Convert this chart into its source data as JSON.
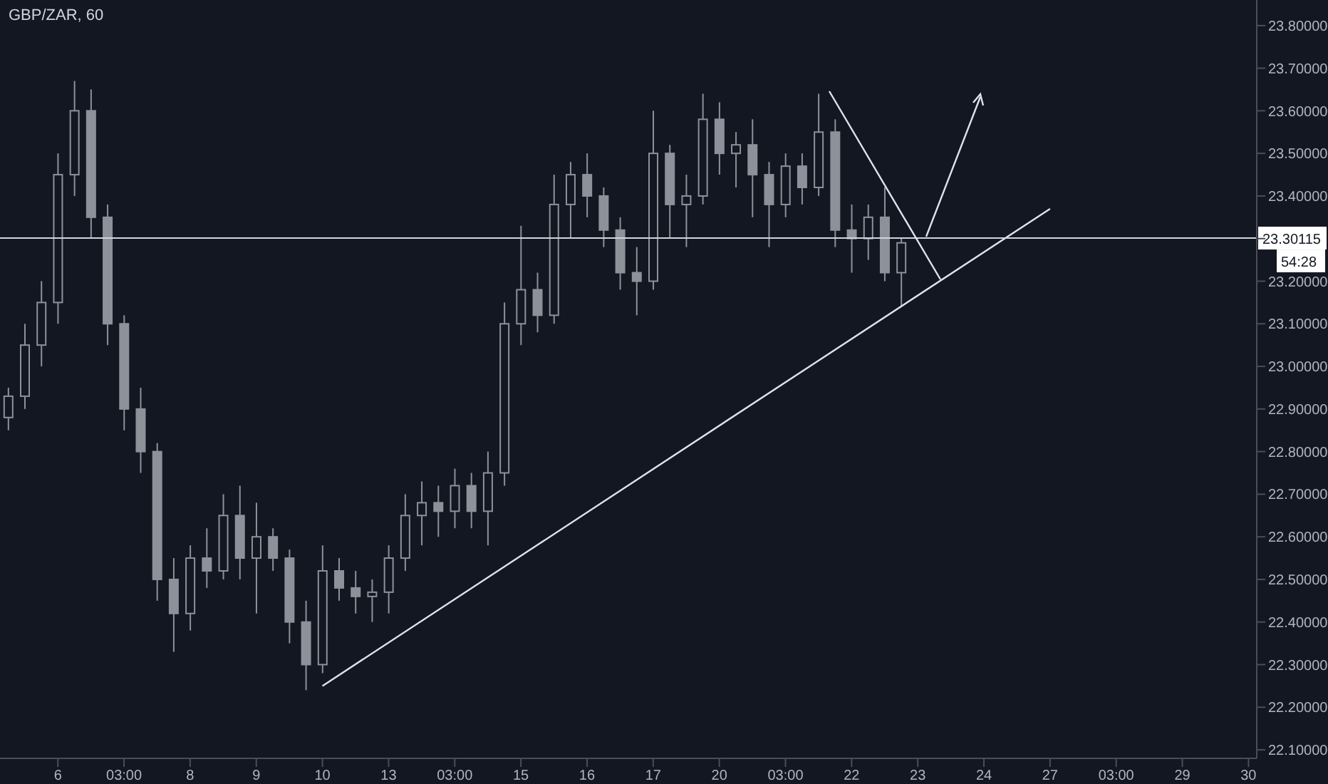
{
  "chart_data": {
    "type": "candlestick",
    "title": "GBP/ZAR, 60",
    "categories": [
      null,
      null,
      null,
      "6",
      null,
      null,
      null,
      "03:00",
      null,
      null,
      null,
      "8",
      null,
      null,
      null,
      "9",
      null,
      null,
      null,
      "10",
      null,
      null,
      null,
      "13",
      null,
      null,
      null,
      "03:00",
      null,
      null,
      null,
      "15",
      null,
      null,
      null,
      "16",
      null,
      null,
      null,
      "17",
      null,
      null,
      null,
      "20",
      null,
      null,
      null,
      "03:00",
      null,
      null,
      null,
      "22",
      null,
      null,
      null,
      "23",
      null,
      null,
      null,
      "24",
      null,
      null,
      null,
      "27",
      null,
      null,
      null,
      "03:00",
      null,
      null,
      null,
      "29",
      null,
      null,
      null,
      "30"
    ],
    "ohlc": [
      [
        22.88,
        22.95,
        22.85,
        22.93
      ],
      [
        22.93,
        23.1,
        22.9,
        23.05
      ],
      [
        23.05,
        23.2,
        23.0,
        23.15
      ],
      [
        23.15,
        23.5,
        23.1,
        23.45
      ],
      [
        23.45,
        23.67,
        23.4,
        23.6
      ],
      [
        23.6,
        23.65,
        23.3,
        23.35
      ],
      [
        23.35,
        23.38,
        23.05,
        23.1
      ],
      [
        23.1,
        23.12,
        22.85,
        22.9
      ],
      [
        22.9,
        22.95,
        22.75,
        22.8
      ],
      [
        22.8,
        22.82,
        22.45,
        22.5
      ],
      [
        22.5,
        22.55,
        22.33,
        22.42
      ],
      [
        22.42,
        22.58,
        22.38,
        22.55
      ],
      [
        22.55,
        22.62,
        22.48,
        22.52
      ],
      [
        22.52,
        22.7,
        22.5,
        22.65
      ],
      [
        22.65,
        22.72,
        22.5,
        22.55
      ],
      [
        22.55,
        22.68,
        22.42,
        22.6
      ],
      [
        22.6,
        22.62,
        22.52,
        22.55
      ],
      [
        22.55,
        22.57,
        22.35,
        22.4
      ],
      [
        22.4,
        22.45,
        22.24,
        22.3
      ],
      [
        22.3,
        22.58,
        22.28,
        22.52
      ],
      [
        22.52,
        22.55,
        22.45,
        22.48
      ],
      [
        22.48,
        22.52,
        22.42,
        22.46
      ],
      [
        22.46,
        22.5,
        22.4,
        22.47
      ],
      [
        22.47,
        22.58,
        22.42,
        22.55
      ],
      [
        22.55,
        22.7,
        22.52,
        22.65
      ],
      [
        22.65,
        22.73,
        22.58,
        22.68
      ],
      [
        22.68,
        22.72,
        22.6,
        22.66
      ],
      [
        22.66,
        22.76,
        22.62,
        22.72
      ],
      [
        22.72,
        22.75,
        22.62,
        22.66
      ],
      [
        22.66,
        22.8,
        22.58,
        22.75
      ],
      [
        22.75,
        23.15,
        22.72,
        23.1
      ],
      [
        23.1,
        23.33,
        23.05,
        23.18
      ],
      [
        23.18,
        23.22,
        23.08,
        23.12
      ],
      [
        23.12,
        23.45,
        23.1,
        23.38
      ],
      [
        23.38,
        23.48,
        23.3,
        23.45
      ],
      [
        23.45,
        23.5,
        23.35,
        23.4
      ],
      [
        23.4,
        23.42,
        23.28,
        23.32
      ],
      [
        23.32,
        23.35,
        23.18,
        23.22
      ],
      [
        23.22,
        23.28,
        23.12,
        23.2
      ],
      [
        23.2,
        23.6,
        23.18,
        23.5
      ],
      [
        23.5,
        23.52,
        23.3,
        23.38
      ],
      [
        23.38,
        23.45,
        23.28,
        23.4
      ],
      [
        23.4,
        23.64,
        23.38,
        23.58
      ],
      [
        23.58,
        23.62,
        23.45,
        23.5
      ],
      [
        23.5,
        23.55,
        23.42,
        23.52
      ],
      [
        23.52,
        23.58,
        23.35,
        23.45
      ],
      [
        23.45,
        23.48,
        23.28,
        23.38
      ],
      [
        23.38,
        23.5,
        23.35,
        23.47
      ],
      [
        23.47,
        23.5,
        23.38,
        23.42
      ],
      [
        23.42,
        23.64,
        23.4,
        23.55
      ],
      [
        23.55,
        23.58,
        23.28,
        23.32
      ],
      [
        23.32,
        23.38,
        23.22,
        23.3
      ],
      [
        23.3,
        23.38,
        23.25,
        23.35
      ],
      [
        23.35,
        23.42,
        23.2,
        23.22
      ],
      [
        23.22,
        23.3,
        23.14,
        23.29
      ],
      null,
      null,
      null,
      null,
      null,
      null,
      null,
      null,
      null,
      null,
      null,
      null,
      null,
      null,
      null,
      null,
      null,
      null,
      null,
      null,
      null
    ],
    "color": "#8e9199",
    "series": [
      {
        "type": "line",
        "x": [
          "10",
          "27"
        ],
        "values": [
          22.25,
          23.37
        ],
        "color": "#e0e3eb"
      }
    ],
    "ylim": [
      22.08,
      23.86
    ],
    "yticks": [
      {
        "value": 22.1,
        "label": "22.10000"
      },
      {
        "value": 22.2,
        "label": "22.20000"
      },
      {
        "value": 22.3,
        "label": "22.30000"
      },
      {
        "value": 22.4,
        "label": "22.40000"
      },
      {
        "value": 22.5,
        "label": "22.50000"
      },
      {
        "value": 22.6,
        "label": "22.60000"
      },
      {
        "value": 22.7,
        "label": "22.70000"
      },
      {
        "value": 22.8,
        "label": "22.80000"
      },
      {
        "value": 22.9,
        "label": "22.90000"
      },
      {
        "value": 23.0,
        "label": "23.00000"
      },
      {
        "value": 23.1,
        "label": "23.10000"
      },
      {
        "value": 23.2,
        "label": "23.20000"
      },
      {
        "value": 23.3,
        "label": null
      },
      {
        "value": 23.4,
        "label": "23.40000"
      },
      {
        "value": 23.5,
        "label": "23.50000"
      },
      {
        "value": 23.6,
        "label": "23.60000"
      },
      {
        "value": 23.7,
        "label": "23.70000"
      },
      {
        "value": 23.8,
        "label": "23.80000"
      }
    ],
    "ref_lines": [
      {
        "axis": "y",
        "value": 23.30115,
        "label": "23.30115",
        "color": "#d1d4dc"
      }
    ],
    "annotations": [
      "54:28"
    ]
  }
}
